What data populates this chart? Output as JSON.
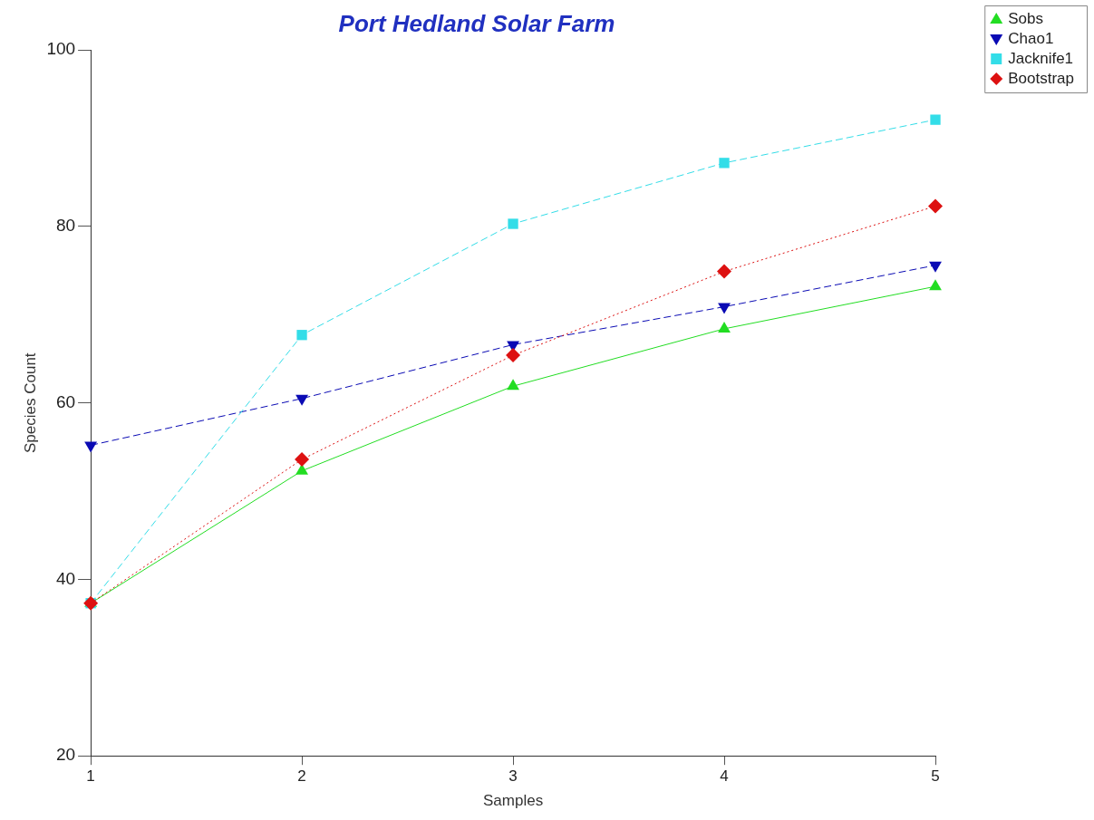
{
  "chart_data": {
    "type": "line",
    "title": "Port Hedland Solar Farm",
    "xlabel": "Samples",
    "ylabel": "Species Count",
    "x": [
      1,
      2,
      3,
      4,
      5
    ],
    "xlim": [
      1,
      5
    ],
    "xticks": [
      1,
      2,
      3,
      4,
      5
    ],
    "ylim": [
      20,
      100
    ],
    "yticks": [
      20,
      40,
      60,
      80,
      100
    ],
    "grid": false,
    "legend": "top right",
    "series": [
      {
        "name": "Sobs",
        "color": "#22dd22",
        "marker": "triangle",
        "line_style": "solid",
        "values": [
          37.3,
          52.3,
          61.9,
          68.4,
          73.2
        ]
      },
      {
        "name": "Chao1",
        "color": "#0a0ab4",
        "marker": "triangle-down",
        "line_style": "dashed",
        "values": [
          55.2,
          60.5,
          66.6,
          70.9,
          75.6
        ]
      },
      {
        "name": "Jacknife1",
        "color": "#33dde8",
        "marker": "square",
        "line_style": "dashed",
        "values": [
          37.3,
          67.7,
          80.3,
          87.2,
          92.1
        ]
      },
      {
        "name": "Bootstrap",
        "color": "#dd1111",
        "marker": "diamond",
        "line_style": "dotted",
        "values": [
          37.3,
          53.6,
          65.4,
          74.9,
          82.3
        ]
      }
    ]
  }
}
